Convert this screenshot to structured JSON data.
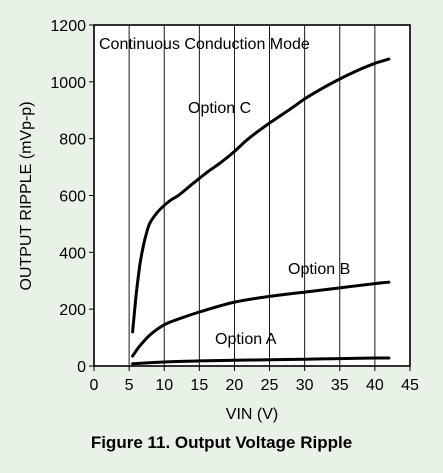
{
  "figure": {
    "caption": "Figure 11. Output Voltage Ripple"
  },
  "chart_data": {
    "type": "line",
    "title": "Continuous Conduction Mode",
    "xlabel": "VIN (V)",
    "ylabel": "OUTPUT RIPPLE (mVp-p)",
    "xlim": [
      0,
      45
    ],
    "ylim": [
      0,
      1200
    ],
    "x_ticks": [
      0,
      5,
      10,
      15,
      20,
      25,
      30,
      35,
      40,
      45
    ],
    "y_ticks": [
      0,
      200,
      400,
      600,
      800,
      1000,
      1200
    ],
    "grid": "vertical",
    "series": [
      {
        "name": "Option C",
        "x": [
          5.5,
          6,
          6.5,
          7,
          7.5,
          8,
          9,
          10,
          11,
          12,
          14,
          16,
          18,
          20,
          22,
          25,
          28,
          30,
          32,
          35,
          38,
          40,
          42
        ],
        "values": [
          120,
          250,
          350,
          420,
          470,
          505,
          540,
          565,
          585,
          600,
          640,
          680,
          715,
          755,
          800,
          855,
          905,
          940,
          970,
          1010,
          1045,
          1065,
          1080
        ]
      },
      {
        "name": "Option B",
        "x": [
          5.5,
          6.5,
          8,
          10,
          12,
          15,
          20,
          25,
          30,
          35,
          40,
          42
        ],
        "values": [
          35,
          70,
          110,
          145,
          165,
          190,
          225,
          245,
          260,
          275,
          290,
          295
        ]
      },
      {
        "name": "Option A",
        "x": [
          5.5,
          10,
          15,
          20,
          25,
          30,
          35,
          40,
          42
        ],
        "values": [
          8,
          14,
          18,
          20,
          22,
          24,
          26,
          28,
          28
        ]
      }
    ]
  }
}
